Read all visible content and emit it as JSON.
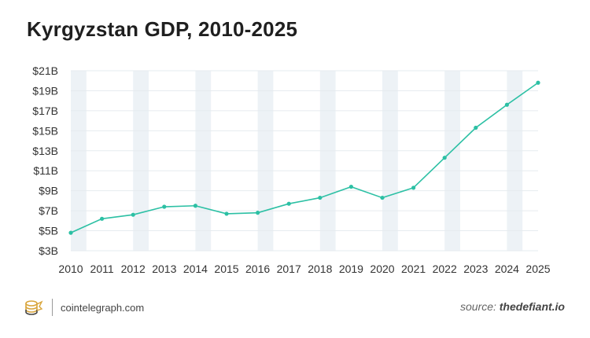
{
  "header": {
    "title": "Kyrgyzstan GDP, 2010-2025"
  },
  "footer": {
    "brand_text": "cointelegraph.com",
    "source_prefix": "source:",
    "source_name": "thedefiant.io"
  },
  "colors": {
    "line": "#2cc0a4",
    "band": "#edf2f6",
    "grid": "#e6ebef",
    "axis_text": "#333333",
    "logo_gold": "#d9a53b"
  },
  "chart_data": {
    "type": "line",
    "title": "Kyrgyzstan GDP, 2010-2025",
    "xlabel": "",
    "ylabel": "",
    "x": [
      "2010",
      "2011",
      "2012",
      "2013",
      "2014",
      "2015",
      "2016",
      "2017",
      "2018",
      "2019",
      "2020",
      "2021",
      "2022",
      "2023",
      "2024",
      "2025"
    ],
    "series": [
      {
        "values": [
          4.8,
          6.2,
          6.6,
          7.4,
          7.5,
          6.7,
          6.8,
          7.7,
          8.3,
          9.4,
          8.3,
          9.3,
          12.3,
          15.3,
          17.6,
          19.8
        ]
      }
    ],
    "y_ticks": [
      3,
      5,
      7,
      9,
      11,
      13,
      15,
      17,
      19,
      21
    ],
    "y_tick_labels": [
      "$3B",
      "$5B",
      "$7B",
      "$9B",
      "$11B",
      "$13B",
      "$15B",
      "$17B",
      "$19B",
      "$21B"
    ],
    "ylim": [
      3,
      21
    ],
    "grid": true,
    "legend": "none"
  }
}
